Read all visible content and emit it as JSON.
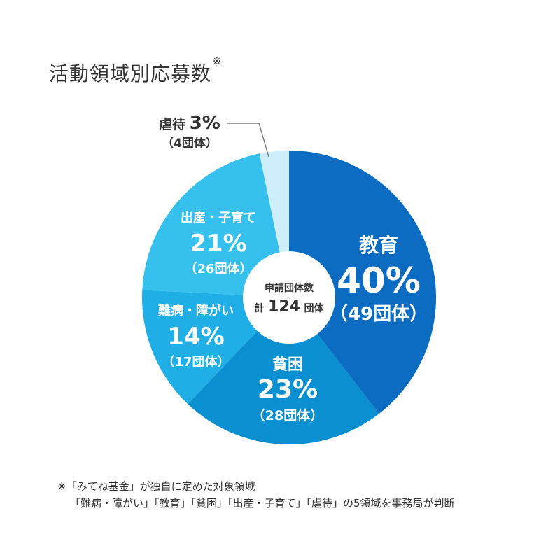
{
  "title": "活動領域別応募数",
  "title_mark": "※",
  "chart_data": {
    "type": "pie",
    "title": "活動領域別応募数",
    "center_label_top": "申請団体数",
    "center_label_prefix": "計",
    "center_value": "124",
    "center_unit": "団体",
    "total": 124,
    "slices": [
      {
        "name": "教育",
        "percent": 40,
        "percent_label": "40%",
        "count": 49,
        "count_label": "（49団体）",
        "color": "#0b6cc1"
      },
      {
        "name": "貧困",
        "percent": 23,
        "percent_label": "23%",
        "count": 28,
        "count_label": "（28団体）",
        "color": "#0a8fd0"
      },
      {
        "name": "難病・障がい",
        "percent": 14,
        "percent_label": "14%",
        "count": 17,
        "count_label": "（17団体）",
        "color": "#1faee6"
      },
      {
        "name": "出産・子育て",
        "percent": 21,
        "percent_label": "21%",
        "count": 26,
        "count_label": "（26団体）",
        "color": "#35c0ee"
      },
      {
        "name": "虐待",
        "percent": 3,
        "percent_label": "3%",
        "count": 4,
        "count_label": "（4団体）",
        "color": "#cdeefa"
      }
    ]
  },
  "note": {
    "line1": "※「みてね基金」が独自に定めた対象領域",
    "line2": "「難病・障がい」「教育」「貧困」「出産・子育て」「虐待」の5領域を事務局が判断"
  }
}
